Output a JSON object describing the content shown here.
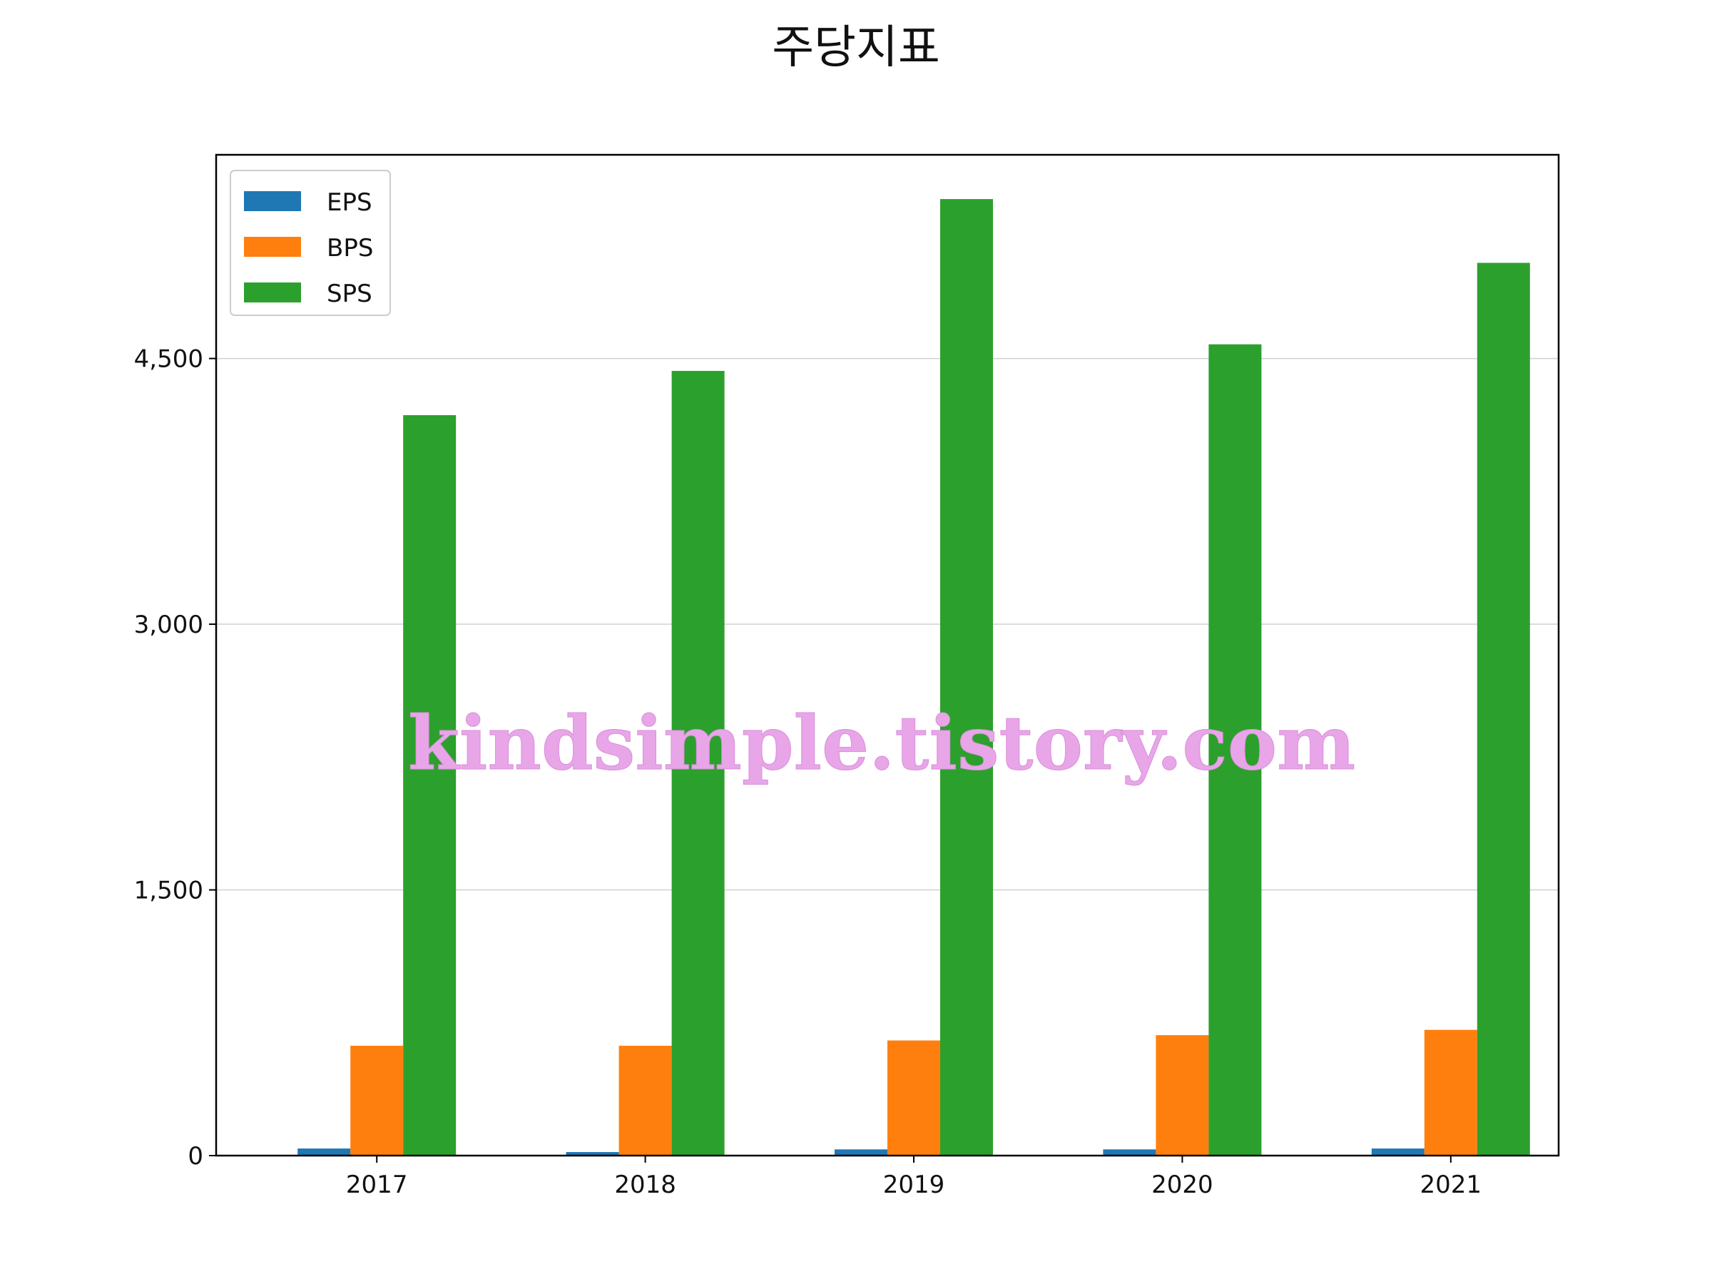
{
  "chart_data": {
    "type": "bar",
    "title": "주당지표",
    "categories": [
      "2017",
      "2018",
      "2019",
      "2020",
      "2021"
    ],
    "series": [
      {
        "name": "EPS",
        "color": "#1f77b4",
        "values": [
          40,
          20,
          35,
          35,
          40
        ]
      },
      {
        "name": "BPS",
        "color": "#ff7f0e",
        "values": [
          620,
          620,
          650,
          680,
          710
        ]
      },
      {
        "name": "SPS",
        "color": "#2ca02c",
        "values": [
          4180,
          4430,
          5400,
          4580,
          5040
        ]
      }
    ],
    "ylim": [
      0,
      5650
    ],
    "yticks": [
      0,
      1500,
      3000,
      4500
    ],
    "ytick_labels": [
      "0",
      "1,500",
      "3,000",
      "4,500"
    ],
    "xlabel": "",
    "ylabel": "",
    "grid": "y",
    "legend_position": "top-left",
    "watermark": "kindsimple.tistory.com"
  }
}
